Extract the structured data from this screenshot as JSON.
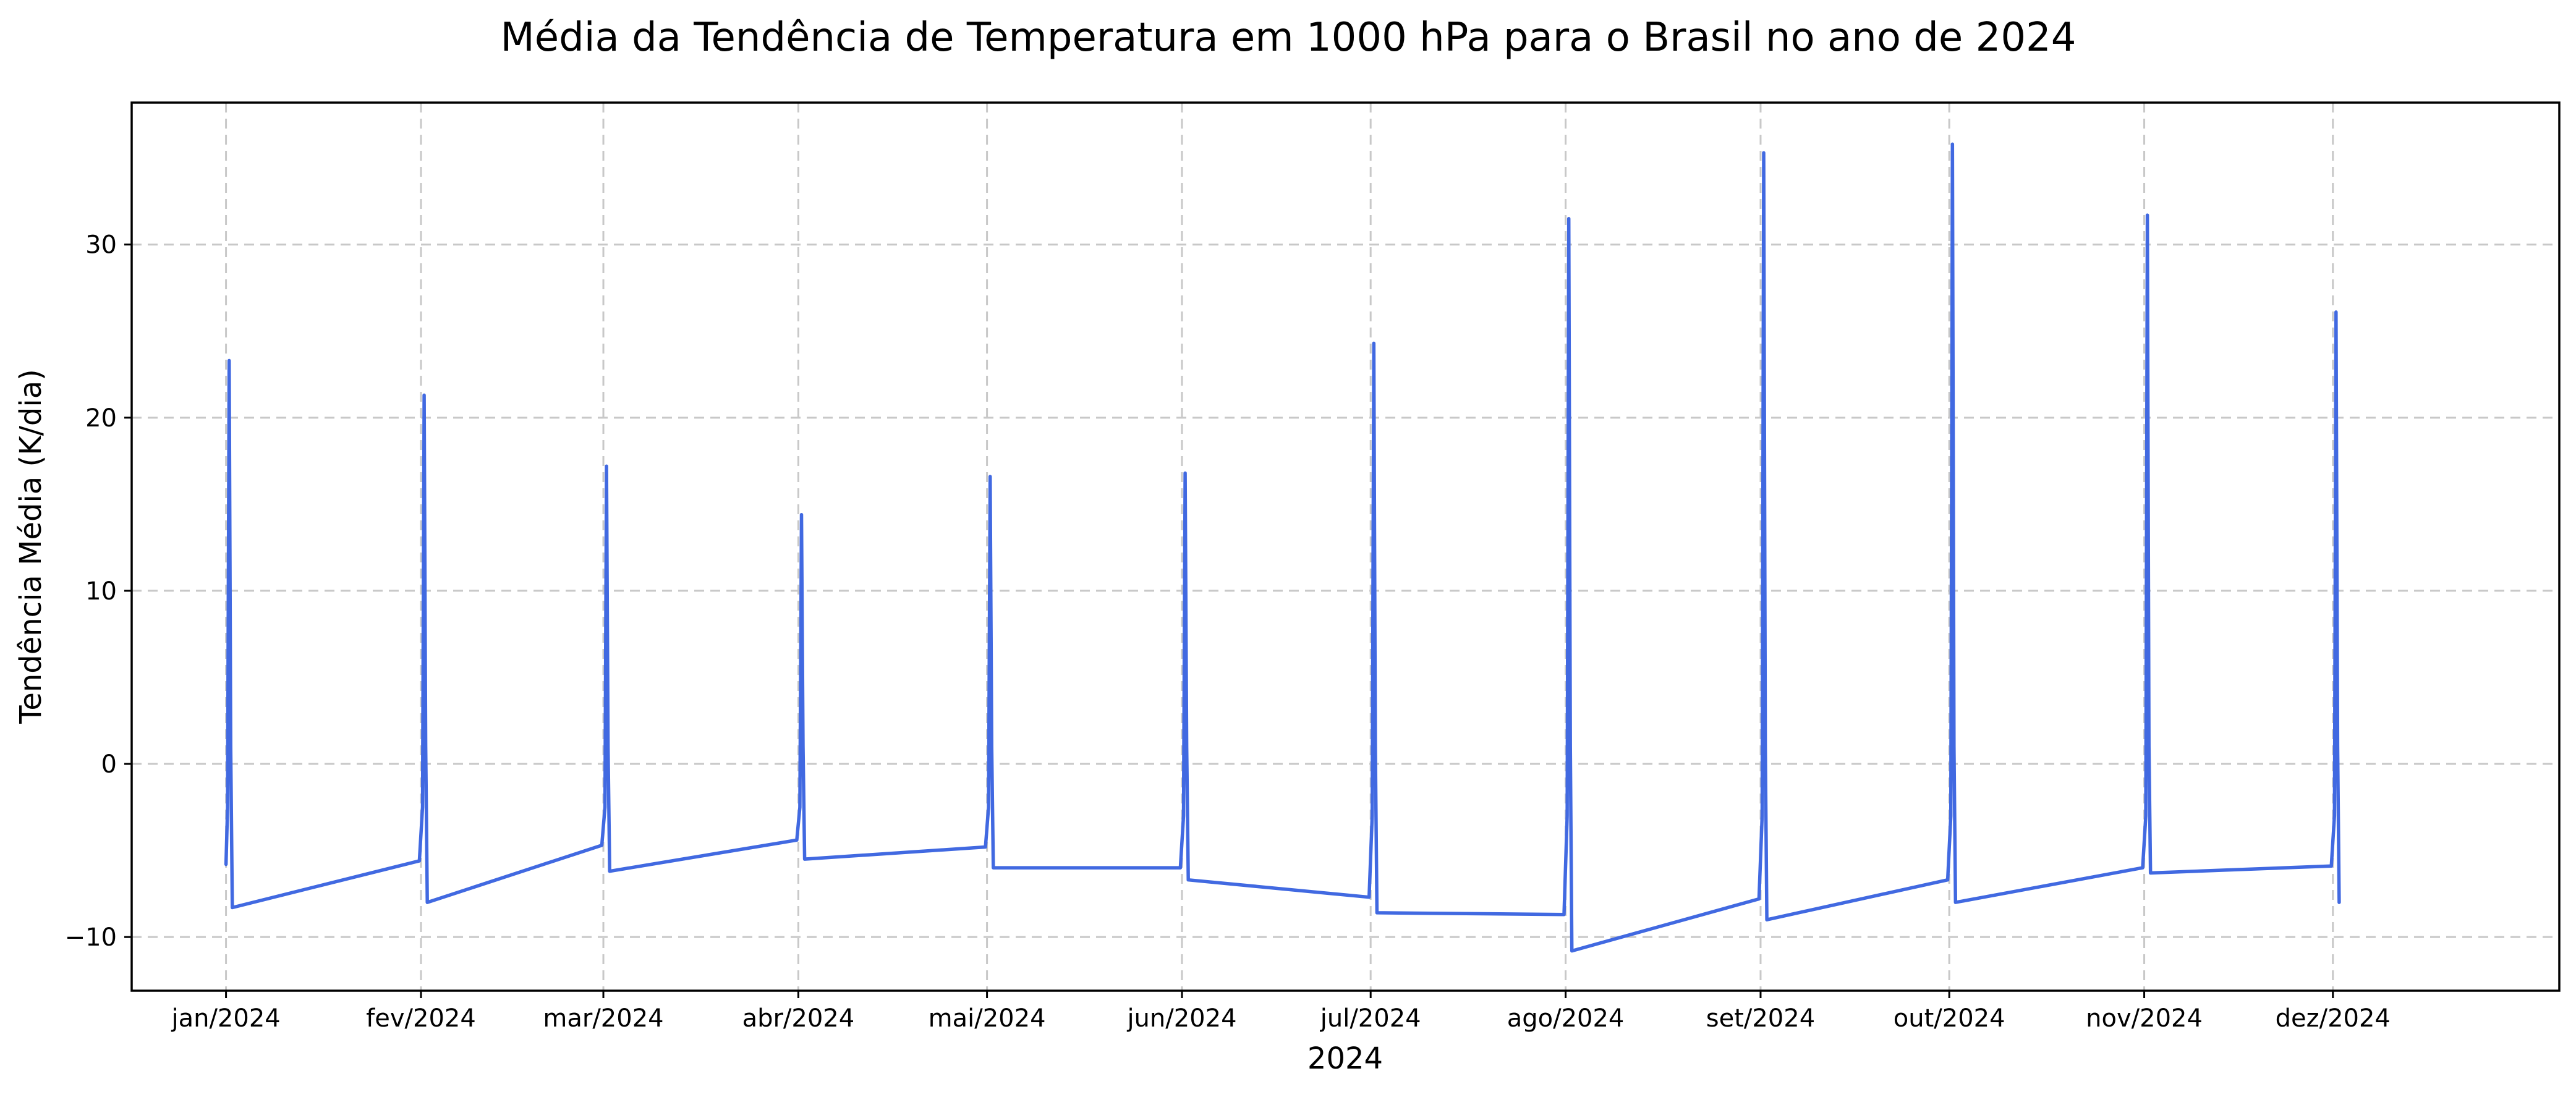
{
  "chart_data": {
    "type": "line",
    "title": "Média da Tendência de Temperatura em 1000 hPa para o Brasil no ano de 2024",
    "xlabel": "2024",
    "ylabel": "Tendência Média (K/dia)",
    "x_range": [
      "2023-12-17",
      "2025-01-06"
    ],
    "ylim": [
      -13.1,
      38.2
    ],
    "y_ticks": [
      -10,
      0,
      10,
      20,
      30
    ],
    "y_tick_labels": [
      "−10",
      "0",
      "10",
      "20",
      "30"
    ],
    "x_ticks": [
      "2024-01-01",
      "2024-02-01",
      "2024-03-01",
      "2024-04-01",
      "2024-05-01",
      "2024-06-01",
      "2024-07-01",
      "2024-08-01",
      "2024-09-01",
      "2024-10-01",
      "2024-11-01",
      "2024-12-01"
    ],
    "x_tick_labels": [
      "jan/2024",
      "fev/2024",
      "mar/2024",
      "abr/2024",
      "mai/2024",
      "jun/2024",
      "jul/2024",
      "ago/2024",
      "set/2024",
      "out/2024",
      "nov/2024",
      "dez/2024"
    ],
    "grid": true,
    "line_color": "#4169e1",
    "series": [
      {
        "points": [
          [
            "2024-01-01T00:00",
            -5.8
          ],
          [
            "2024-01-01T06:00",
            -2.5
          ],
          [
            "2024-01-01T12:00",
            23.3
          ],
          [
            "2024-01-01T18:00",
            1.0
          ],
          [
            "2024-01-02T00:00",
            -8.3
          ],
          [
            "2024-01-31T18:00",
            -5.6
          ],
          [
            "2024-02-01T06:00",
            -2.5
          ],
          [
            "2024-02-01T12:00",
            21.3
          ],
          [
            "2024-02-01T18:00",
            1.0
          ],
          [
            "2024-02-02T00:00",
            -8.0
          ],
          [
            "2024-02-29T18:00",
            -4.7
          ],
          [
            "2024-03-01T06:00",
            -2.5
          ],
          [
            "2024-03-01T12:00",
            17.2
          ],
          [
            "2024-03-01T18:00",
            1.0
          ],
          [
            "2024-03-02T00:00",
            -6.2
          ],
          [
            "2024-03-31T18:00",
            -4.4
          ],
          [
            "2024-04-01T06:00",
            -2.5
          ],
          [
            "2024-04-01T12:00",
            14.4
          ],
          [
            "2024-04-01T18:00",
            1.0
          ],
          [
            "2024-04-02T00:00",
            -5.5
          ],
          [
            "2024-04-30T18:00",
            -4.8
          ],
          [
            "2024-05-01T06:00",
            -2.5
          ],
          [
            "2024-05-01T12:00",
            16.6
          ],
          [
            "2024-05-01T18:00",
            1.0
          ],
          [
            "2024-05-02T00:00",
            -6.0
          ],
          [
            "2024-05-31T18:00",
            -6.0
          ],
          [
            "2024-06-01T06:00",
            -3.0
          ],
          [
            "2024-06-01T12:00",
            16.8
          ],
          [
            "2024-06-01T18:00",
            1.0
          ],
          [
            "2024-06-02T00:00",
            -6.7
          ],
          [
            "2024-06-30T18:00",
            -7.7
          ],
          [
            "2024-07-01T06:00",
            -3.0
          ],
          [
            "2024-07-01T12:00",
            24.3
          ],
          [
            "2024-07-01T18:00",
            1.0
          ],
          [
            "2024-07-02T00:00",
            -8.6
          ],
          [
            "2024-07-31T18:00",
            -8.7
          ],
          [
            "2024-08-01T06:00",
            -3.0
          ],
          [
            "2024-08-01T12:00",
            31.5
          ],
          [
            "2024-08-01T18:00",
            1.0
          ],
          [
            "2024-08-02T00:00",
            -10.8
          ],
          [
            "2024-08-31T18:00",
            -7.8
          ],
          [
            "2024-09-01T06:00",
            -3.0
          ],
          [
            "2024-09-01T12:00",
            35.3
          ],
          [
            "2024-09-01T18:00",
            1.0
          ],
          [
            "2024-09-02T00:00",
            -9.0
          ],
          [
            "2024-09-30T18:00",
            -6.7
          ],
          [
            "2024-10-01T06:00",
            -3.0
          ],
          [
            "2024-10-01T12:00",
            35.8
          ],
          [
            "2024-10-01T18:00",
            1.0
          ],
          [
            "2024-10-02T00:00",
            -8.0
          ],
          [
            "2024-10-31T18:00",
            -6.0
          ],
          [
            "2024-11-01T06:00",
            -3.0
          ],
          [
            "2024-11-01T12:00",
            31.7
          ],
          [
            "2024-11-01T18:00",
            1.0
          ],
          [
            "2024-11-02T00:00",
            -6.3
          ],
          [
            "2024-11-30T18:00",
            -5.9
          ],
          [
            "2024-12-01T06:00",
            -3.0
          ],
          [
            "2024-12-01T12:00",
            26.1
          ],
          [
            "2024-12-01T18:00",
            1.0
          ],
          [
            "2024-12-02T00:00",
            -8.0
          ]
        ]
      }
    ]
  }
}
